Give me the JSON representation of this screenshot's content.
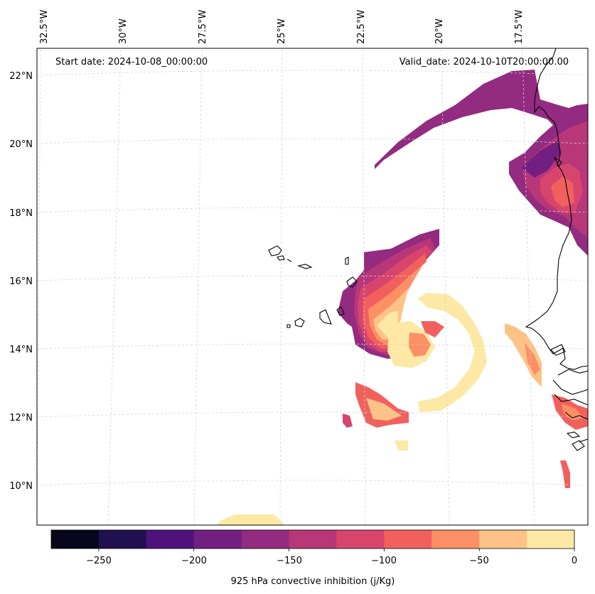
{
  "map": {
    "start_label": "Start date: 2024-10-08_00:00:00",
    "valid_label": "Valid_date: 2024-10-10T20:00:00.00",
    "lon_labels": [
      "32.5°W",
      "30°W",
      "27.5°W",
      "25°W",
      "22.5°W",
      "20°W",
      "17.5°W"
    ],
    "lat_labels": [
      "22°N",
      "20°N",
      "18°N",
      "16°N",
      "14°N",
      "12°N",
      "10°N"
    ]
  },
  "colorbar": {
    "title": "925 hPa convective inhibition (j/Kg)",
    "tick_labels": [
      "−250",
      "−200",
      "−150",
      "−100",
      "−50",
      "0"
    ],
    "levels": [
      -275,
      -250,
      -225,
      -200,
      -175,
      -150,
      -125,
      -100,
      -75,
      -50,
      -25,
      0
    ],
    "colors": [
      "#07061c",
      "#221150",
      "#4f127b",
      "#721f81",
      "#932b80",
      "#b73779",
      "#d8456c",
      "#f1605d",
      "#fd8f64",
      "#fec287",
      "#fde8a5"
    ]
  },
  "colors": {
    "cin_m25_0": "#fde8a5",
    "cin_m50_m25": "#fec287",
    "cin_m75_m50": "#fd8f64",
    "cin_m100_m75": "#f1605d",
    "cin_m125_m100": "#d8456c",
    "cin_m150_m125": "#b73779",
    "cin_m175_m150": "#932b80",
    "cin_m200_m175": "#721f81",
    "cin_m225_m200": "#4f127b",
    "gridline": "#d4d4d4",
    "coastline": "#000000"
  }
}
